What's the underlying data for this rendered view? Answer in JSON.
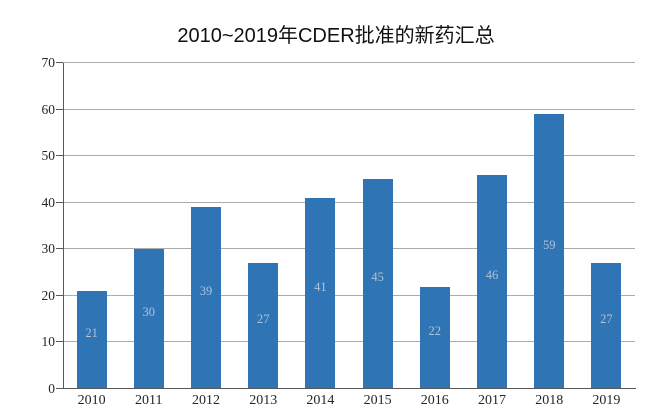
{
  "chart_data": {
    "type": "bar",
    "title": "2010~2019年CDER批准的新药汇总",
    "categories": [
      "2010",
      "2011",
      "2012",
      "2013",
      "2014",
      "2015",
      "2016",
      "2017",
      "2018",
      "2019"
    ],
    "values": [
      21,
      30,
      39,
      27,
      41,
      45,
      22,
      46,
      59,
      27
    ],
    "xlabel": "",
    "ylabel": "",
    "ylim": [
      0,
      70
    ],
    "yticks": [
      0,
      10,
      20,
      30,
      40,
      50,
      60,
      70
    ],
    "grid": "horizontal",
    "legend": "none",
    "bar_labels_shown": true
  },
  "colors": {
    "background": "#ffffff",
    "bar": "#2f74b5",
    "bar_value_label": "#aec3d8",
    "gridline": "#ababab",
    "axis_line": "#595959",
    "tick_label": "#262626",
    "title": "#111111"
  }
}
